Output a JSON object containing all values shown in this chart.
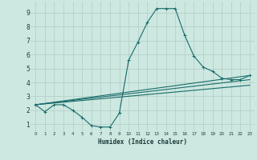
{
  "xlabel": "Humidex (Indice chaleur)",
  "bg_color": "#cce8e0",
  "grid_color": "#b8d4cc",
  "line_color": "#1a6b6b",
  "xlim": [
    -0.5,
    23.5
  ],
  "ylim": [
    0.5,
    9.8
  ],
  "xticks": [
    0,
    1,
    2,
    3,
    4,
    5,
    6,
    7,
    8,
    9,
    10,
    11,
    12,
    13,
    14,
    15,
    16,
    17,
    18,
    19,
    20,
    21,
    22,
    23
  ],
  "yticks": [
    1,
    2,
    3,
    4,
    5,
    6,
    7,
    8,
    9
  ],
  "series": [
    {
      "x": [
        0,
        1,
        2,
        3,
        4,
        5,
        6,
        7,
        8,
        9,
        10,
        11,
        12,
        13,
        14,
        15,
        16,
        17,
        18,
        19,
        20,
        21,
        22,
        23
      ],
      "y": [
        2.4,
        1.9,
        2.4,
        2.4,
        2.0,
        1.5,
        0.9,
        0.8,
        0.8,
        1.8,
        5.6,
        6.9,
        8.3,
        9.3,
        9.3,
        9.3,
        7.4,
        5.9,
        5.1,
        4.8,
        4.3,
        4.2,
        4.2,
        4.5
      ],
      "marker": true
    },
    {
      "x": [
        0,
        23
      ],
      "y": [
        2.4,
        4.5
      ],
      "marker": false
    },
    {
      "x": [
        0,
        23
      ],
      "y": [
        2.4,
        4.2
      ],
      "marker": false
    },
    {
      "x": [
        0,
        23
      ],
      "y": [
        2.4,
        3.8
      ],
      "marker": false
    }
  ]
}
